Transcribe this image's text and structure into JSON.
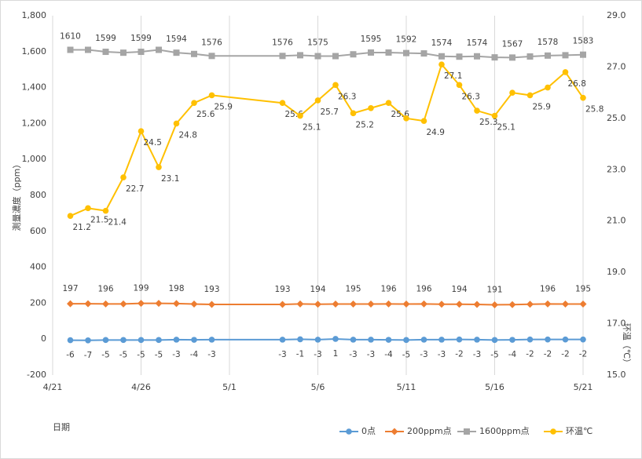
{
  "chart_data": {
    "type": "line",
    "x_label": "日期",
    "y_label": "測量濃度（ppm）",
    "y2_label": "环温（℃）",
    "x": [
      "4/22",
      "4/23",
      "4/24",
      "4/25",
      "4/26",
      "4/27",
      "4/28",
      "4/29",
      "4/30",
      "5/4",
      "5/5",
      "5/6",
      "5/7",
      "5/8",
      "5/9",
      "5/10",
      "5/11",
      "5/12",
      "5/13",
      "5/14",
      "5/15",
      "5/16",
      "5/17",
      "5/18",
      "5/19",
      "5/20",
      "5/21"
    ],
    "xlim": [
      "4/21",
      "5/21"
    ],
    "xticks": [
      "4/21",
      "4/26",
      "5/1",
      "5/6",
      "5/11",
      "5/16",
      "5/21"
    ],
    "ylim": [
      -200,
      1800
    ],
    "yticks": [
      {
        "value": -200,
        "label": "-200"
      },
      0,
      200,
      400,
      600,
      800,
      {
        "value": 1000,
        "label": "1,000"
      },
      {
        "value": 1200,
        "label": "1,200"
      },
      {
        "value": 1400,
        "label": "1,400"
      },
      {
        "value": 1600,
        "label": "1,600"
      },
      {
        "value": 1800,
        "label": "1,800"
      }
    ],
    "y2lim": [
      15,
      29
    ],
    "y2ticks": [
      {
        "value": 15,
        "label": "15.0"
      },
      {
        "value": 17,
        "label": "17.0"
      },
      {
        "value": 19,
        "label": "19.0"
      },
      {
        "value": 21,
        "label": "21.0"
      },
      {
        "value": 23,
        "label": "23.0"
      },
      {
        "value": 25,
        "label": "25.0"
      },
      {
        "value": 27,
        "label": "27.0"
      },
      {
        "value": 29,
        "label": "29.0"
      }
    ],
    "grid": "x",
    "legend": "bottom-right",
    "series": [
      {
        "name": "0点",
        "color": "#5b9bd5",
        "marker": "circle",
        "label_position": "below",
        "values": [
          -6,
          -7,
          -5,
          -5,
          -5,
          -5,
          -3,
          -4,
          -3,
          -3,
          -1,
          -3,
          1,
          -3,
          -3,
          -4,
          -5,
          -3,
          -3,
          -2,
          -3,
          -5,
          -4,
          -2,
          -2,
          -2,
          -2
        ]
      },
      {
        "name": "200ppm点",
        "color": "#ed7d31",
        "marker": "diamond",
        "label_position": "above",
        "values": [
          197,
          197,
          196,
          196,
          199,
          199,
          198,
          195,
          193,
          193,
          196,
          194,
          195,
          195,
          195,
          196,
          195,
          196,
          194,
          194,
          193,
          191,
          192,
          194,
          196,
          195,
          195
        ],
        "value_labels": [
          "197",
          null,
          "196",
          null,
          "199",
          null,
          "198",
          null,
          "193",
          "193",
          null,
          "194",
          null,
          "195",
          null,
          "196",
          null,
          "196",
          null,
          "194",
          null,
          "191",
          null,
          null,
          "196",
          null,
          "195"
        ]
      },
      {
        "name": "1600ppm点",
        "color": "#a5a5a5",
        "marker": "square",
        "label_position": "above",
        "values": [
          1610,
          1610,
          1599,
          1594,
          1599,
          1610,
          1594,
          1587,
          1576,
          1576,
          1580,
          1575,
          1575,
          1585,
          1595,
          1595,
          1592,
          1590,
          1574,
          1572,
          1574,
          1568,
          1567,
          1573,
          1578,
          1580,
          1583
        ],
        "value_labels": [
          "1610",
          null,
          "1599",
          null,
          "1599",
          null,
          "1594",
          null,
          "1576",
          "1576",
          null,
          "1575",
          null,
          null,
          "1595",
          null,
          "1592",
          null,
          "1574",
          null,
          "1574",
          null,
          "1567",
          null,
          "1578",
          null,
          "1583"
        ]
      },
      {
        "name": "环温℃",
        "color": "#ffc000",
        "marker": "circle",
        "axis": "y2",
        "label_position": "below-right",
        "values": [
          21.2,
          21.5,
          21.4,
          22.7,
          24.5,
          23.1,
          24.8,
          25.6,
          25.9,
          25.6,
          25.1,
          25.7,
          26.3,
          25.2,
          25.4,
          25.6,
          25.0,
          24.9,
          27.1,
          26.3,
          25.3,
          25.1,
          26.0,
          25.9,
          26.2,
          26.8,
          25.8
        ],
        "value_labels": [
          "21.2",
          "21.5",
          "21.4",
          "22.7",
          "24.5",
          "23.1",
          "24.8",
          "25.6",
          "25.9",
          "25.6",
          "25.1",
          "25.7",
          "26.3",
          "25.2",
          null,
          "25.6",
          null,
          "24.9",
          "27.1",
          "26.3",
          "25.3",
          "25.1",
          null,
          "25.9",
          null,
          "26.8",
          "25.8"
        ]
      }
    ]
  }
}
